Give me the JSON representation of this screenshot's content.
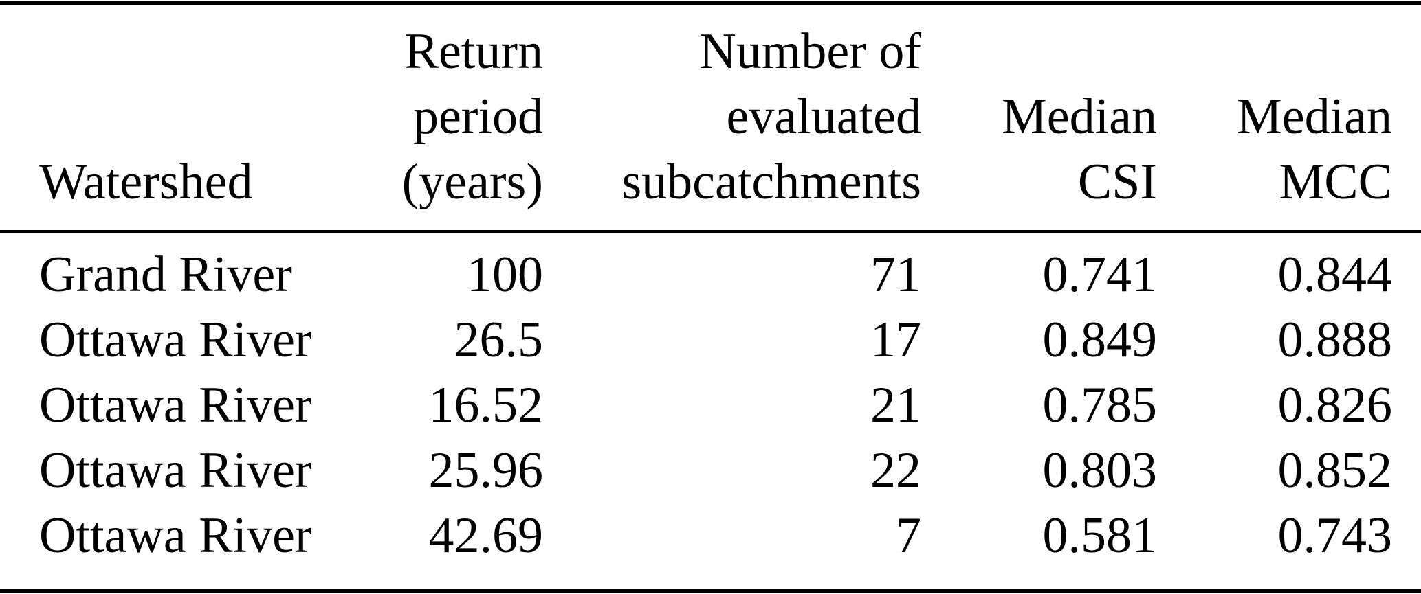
{
  "table": {
    "header": {
      "watershed": "Watershed",
      "return_period": [
        "Return",
        "period",
        "(years)"
      ],
      "subcatchments": [
        "Number of",
        "evaluated",
        "subcatchments"
      ],
      "median_csi": [
        "Median",
        "CSI"
      ],
      "median_mcc": [
        "Median",
        "MCC"
      ]
    },
    "rows": [
      {
        "watershed": "Grand River",
        "return_period": "100",
        "subcatchments": "71",
        "median_csi": "0.741",
        "median_mcc": "0.844"
      },
      {
        "watershed": "Ottawa River",
        "return_period": "26.5",
        "subcatchments": "17",
        "median_csi": "0.849",
        "median_mcc": "0.888"
      },
      {
        "watershed": "Ottawa River",
        "return_period": "16.52",
        "subcatchments": "21",
        "median_csi": "0.785",
        "median_mcc": "0.826"
      },
      {
        "watershed": "Ottawa River",
        "return_period": "25.96",
        "subcatchments": "22",
        "median_csi": "0.803",
        "median_mcc": "0.852"
      },
      {
        "watershed": "Ottawa River",
        "return_period": "42.69",
        "subcatchments": "7",
        "median_csi": "0.581",
        "median_mcc": "0.743"
      }
    ],
    "colors": {
      "text": "#000000",
      "background": "#ffffff",
      "rule": "#000000"
    }
  }
}
